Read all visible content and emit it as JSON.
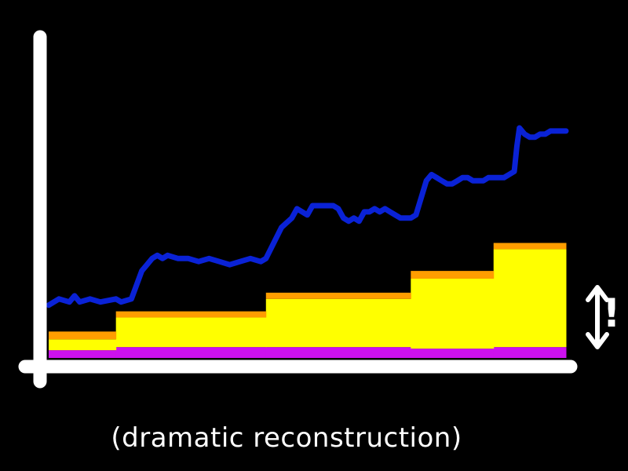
{
  "caption": "(dramatic reconstruction)",
  "annotation": "!",
  "colors": {
    "background": "#000000",
    "axis": "#ffffff",
    "blue_line": "#0a22d6",
    "orange_band": "#ff9d00",
    "yellow_area": "#ffff00",
    "purple_band": "#cc11ee",
    "arrow": "#ffffff"
  },
  "chart_data": {
    "type": "area",
    "title": "",
    "xlabel": "",
    "ylabel": "",
    "xlim": [
      0,
      100
    ],
    "ylim": [
      0,
      100
    ],
    "grid": false,
    "legend": "none",
    "line_series": {
      "color": "#0a22d6",
      "points": [
        [
          0,
          17
        ],
        [
          2,
          19
        ],
        [
          4,
          18
        ],
        [
          5,
          20
        ],
        [
          6,
          18
        ],
        [
          8,
          19
        ],
        [
          10,
          18
        ],
        [
          13,
          19
        ],
        [
          14,
          18
        ],
        [
          16,
          19
        ],
        [
          18,
          28
        ],
        [
          19,
          30
        ],
        [
          20,
          32
        ],
        [
          21,
          33
        ],
        [
          22,
          32
        ],
        [
          23,
          33
        ],
        [
          25,
          32
        ],
        [
          27,
          32
        ],
        [
          29,
          31
        ],
        [
          31,
          32
        ],
        [
          33,
          31
        ],
        [
          35,
          30
        ],
        [
          37,
          31
        ],
        [
          39,
          32
        ],
        [
          41,
          31
        ],
        [
          42,
          32
        ],
        [
          45,
          42
        ],
        [
          47,
          45
        ],
        [
          48,
          48
        ],
        [
          49,
          47
        ],
        [
          50,
          46
        ],
        [
          51,
          49
        ],
        [
          53,
          49
        ],
        [
          55,
          49
        ],
        [
          56,
          48
        ],
        [
          57,
          45
        ],
        [
          58,
          44
        ],
        [
          59,
          45
        ],
        [
          60,
          44
        ],
        [
          61,
          47
        ],
        [
          62,
          47
        ],
        [
          63,
          48
        ],
        [
          64,
          47
        ],
        [
          65,
          48
        ],
        [
          66,
          47
        ],
        [
          67,
          46
        ],
        [
          68,
          45
        ],
        [
          69,
          45
        ],
        [
          70,
          45
        ],
        [
          71,
          46
        ],
        [
          73,
          57
        ],
        [
          74,
          59
        ],
        [
          75,
          58
        ],
        [
          76,
          57
        ],
        [
          77,
          56
        ],
        [
          78,
          56
        ],
        [
          79,
          57
        ],
        [
          80,
          58
        ],
        [
          81,
          58
        ],
        [
          82,
          57
        ],
        [
          84,
          57
        ],
        [
          85,
          58
        ],
        [
          87,
          58
        ],
        [
          88,
          58
        ],
        [
          89,
          59
        ],
        [
          90,
          60
        ],
        [
          90.5,
          68
        ],
        [
          91,
          74
        ],
        [
          92,
          72
        ],
        [
          93,
          71
        ],
        [
          94,
          71
        ],
        [
          95,
          72
        ],
        [
          96,
          72
        ],
        [
          97,
          73
        ],
        [
          99,
          73
        ],
        [
          100,
          73
        ]
      ]
    },
    "stacked_steps": {
      "segments_x": [
        0,
        13,
        42,
        70,
        86,
        100
      ],
      "series": [
        {
          "color": "#cc11ee",
          "values": [
            2.5,
            3.5,
            3.5,
            3.0,
            3.5
          ]
        },
        {
          "color": "#ffff00",
          "values": [
            3.5,
            9.5,
            15.5,
            22.5,
            31.5
          ]
        },
        {
          "color": "#ff9d00",
          "values": [
            2.5,
            2.0,
            2.0,
            2.5,
            2.0
          ]
        }
      ]
    }
  }
}
